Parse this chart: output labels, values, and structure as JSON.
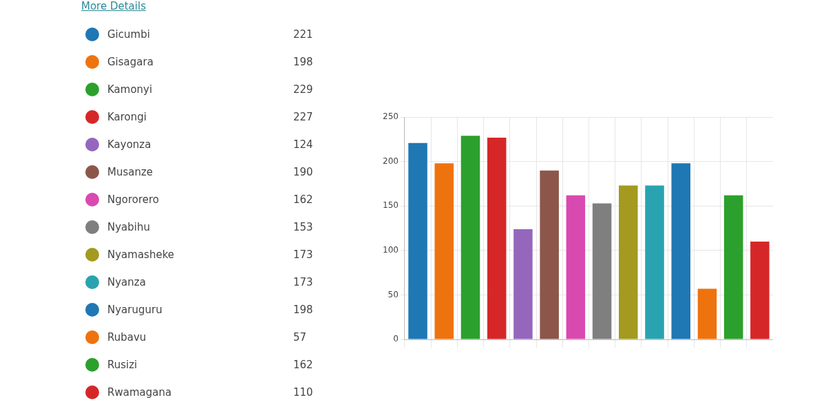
{
  "chart_data": [
    {
      "type": "other",
      "annotations": [
        "More Details"
      ],
      "categories": [
        "Gicumbi",
        "Gisagara",
        "Kamonyi",
        "Karongi",
        "Kayonza",
        "Musanze",
        "Ngororero",
        "Nyabihu",
        "Nyamasheke",
        "Nyanza",
        "Nyaruguru",
        "Rubavu",
        "Rusizi",
        "Rwamagana"
      ],
      "values": [
        221,
        198,
        229,
        227,
        124,
        190,
        162,
        153,
        173,
        173,
        198,
        57,
        162,
        110
      ],
      "data_labels": true
    },
    {
      "type": "bar",
      "categories": [
        null,
        null,
        null,
        null,
        null,
        null,
        null,
        null,
        null,
        null,
        null,
        null,
        null,
        null
      ],
      "values": [
        221,
        198,
        229,
        227,
        124,
        190,
        162,
        153,
        173,
        173,
        198,
        57,
        162,
        110
      ],
      "colors": [
        "#1f77b4",
        "#ee730f",
        "#2ca02c",
        "#d62728",
        "#9467bd",
        "#8c564b",
        "#d94ab0",
        "#7f7f7f",
        "#a39a1f",
        "#2aa3b0",
        "#1f77b4",
        "#ee730f",
        "#2ca02c",
        "#d62728"
      ],
      "ylim": [
        0,
        250
      ],
      "yticks": [
        0,
        50,
        100,
        150,
        200,
        250
      ],
      "grid": true,
      "tick_labels": "y"
    }
  ]
}
